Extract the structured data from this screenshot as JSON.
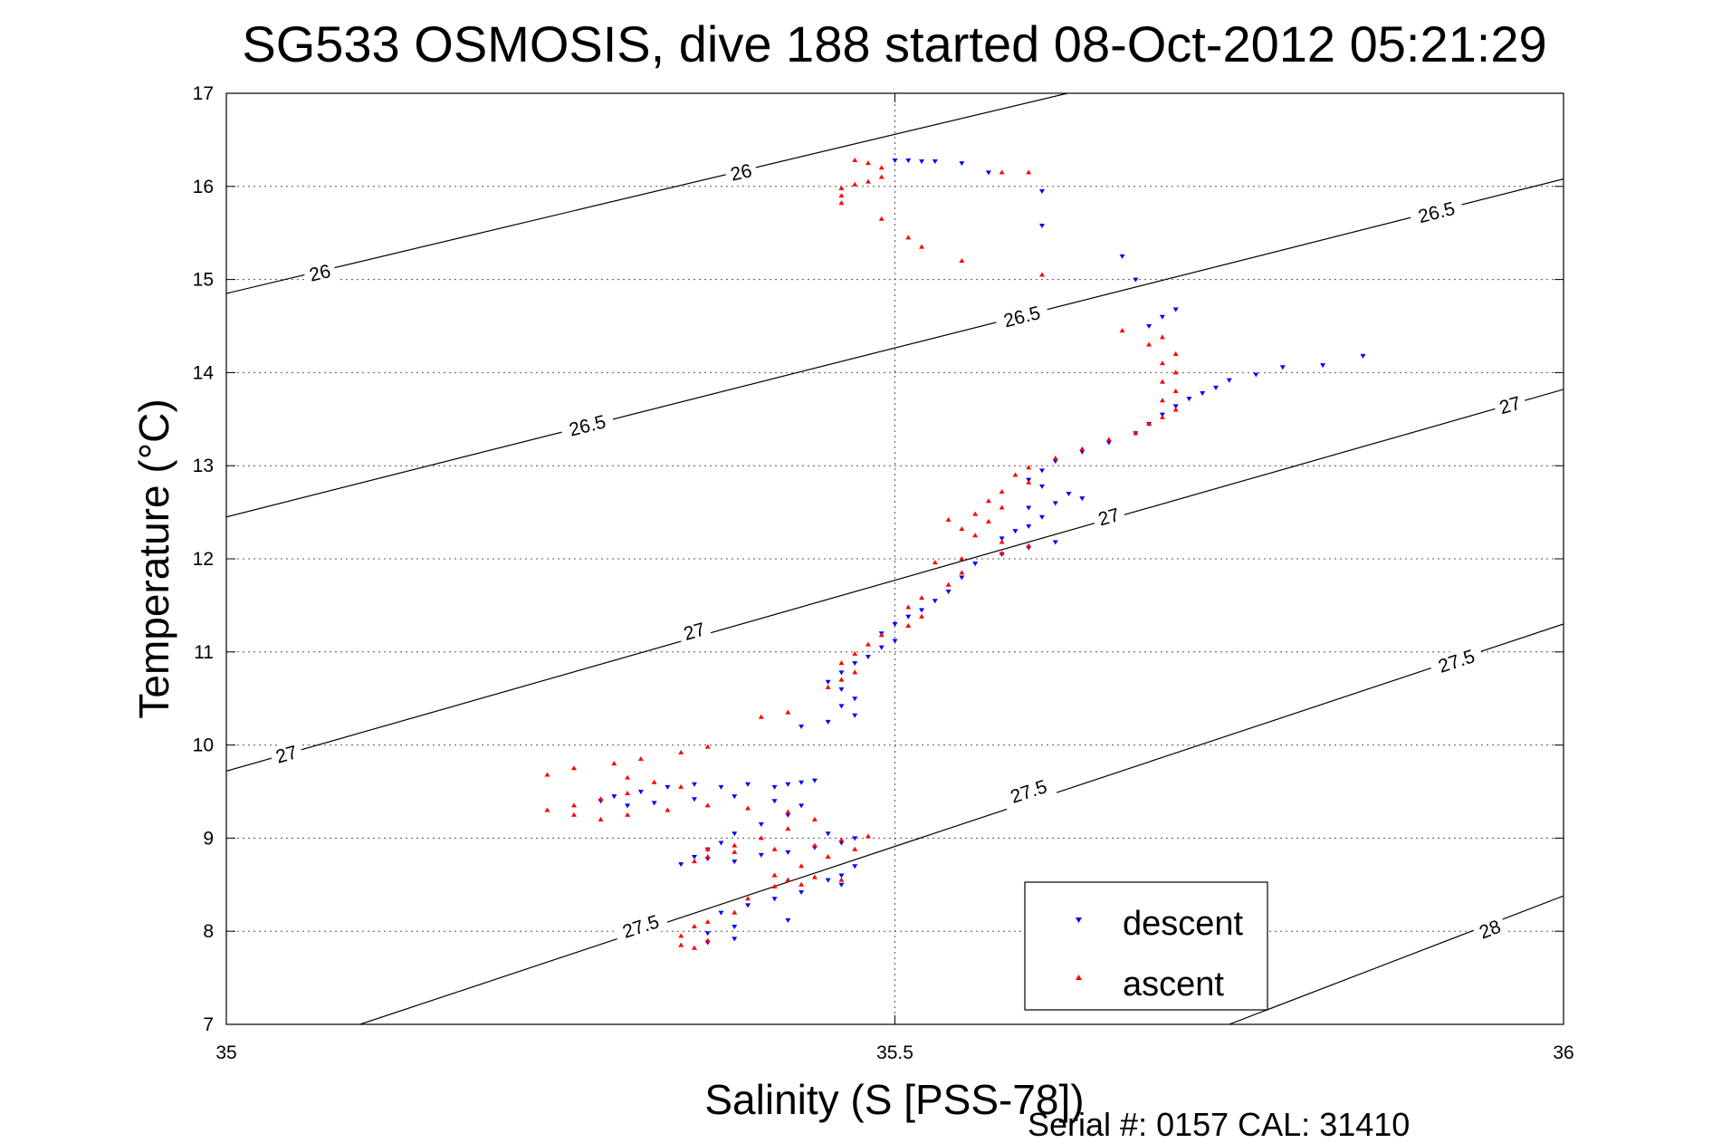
{
  "chart_data": {
    "type": "scatter",
    "title": "SG533 OSMOSIS, dive 188 started 08-Oct-2012 05:21:29",
    "xlabel": "Salinity (S [PSS-78])",
    "ylabel": "Temperature (°C)",
    "footer": "Serial #: 0157  CAL: 31410",
    "xlim": [
      35,
      36
    ],
    "ylim": [
      7,
      17
    ],
    "xticks": [
      "35",
      "35.5",
      "36"
    ],
    "yticks": [
      "7",
      "8",
      "9",
      "10",
      "11",
      "12",
      "13",
      "14",
      "15",
      "16",
      "17"
    ],
    "grid": true,
    "legend": {
      "placement": "bottom-right",
      "entries": [
        {
          "label": "descent",
          "color": "#0000ff",
          "marker": "triangle-down"
        },
        {
          "label": "ascent",
          "color": "#ff0000",
          "marker": "triangle-up"
        }
      ]
    },
    "density_contours": [
      {
        "label": "26",
        "line": [
          [
            35,
            14.85
          ],
          [
            35.629,
            17.0
          ]
        ],
        "labels": [
          [
            35.07,
            15.07
          ],
          [
            35.385,
            16.15
          ]
        ]
      },
      {
        "label": "26.5",
        "line": [
          [
            35,
            12.45
          ],
          [
            36,
            16.08
          ]
        ],
        "labels": [
          [
            35.27,
            13.43
          ],
          [
            35.595,
            14.6
          ],
          [
            35.905,
            15.72
          ]
        ]
      },
      {
        "label": "27",
        "line": [
          [
            35,
            9.72
          ],
          [
            36,
            13.82
          ]
        ],
        "labels": [
          [
            35.045,
            9.9
          ],
          [
            35.35,
            11.22
          ],
          [
            35.66,
            12.45
          ],
          [
            35.96,
            13.65
          ]
        ]
      },
      {
        "label": "27.5",
        "line": [
          [
            35.1,
            7.0
          ],
          [
            36,
            11.3
          ]
        ],
        "labels": [
          [
            35.31,
            8.05
          ],
          [
            35.6,
            9.5
          ],
          [
            35.92,
            10.9
          ]
        ]
      },
      {
        "label": "28",
        "line": [
          [
            35.75,
            7.0
          ],
          [
            36,
            8.38
          ]
        ],
        "labels": [
          [
            35.945,
            8.02
          ]
        ]
      }
    ],
    "series": [
      {
        "name": "descent",
        "color": "#0000ff",
        "points": [
          [
            35.5,
            16.28
          ],
          [
            35.51,
            16.28
          ],
          [
            35.52,
            16.27
          ],
          [
            35.53,
            16.27
          ],
          [
            35.55,
            16.25
          ],
          [
            35.57,
            16.15
          ],
          [
            35.61,
            15.95
          ],
          [
            35.61,
            15.58
          ],
          [
            35.67,
            15.25
          ],
          [
            35.68,
            15.0
          ],
          [
            35.71,
            14.68
          ],
          [
            35.7,
            14.6
          ],
          [
            35.69,
            14.5
          ],
          [
            35.85,
            14.18
          ],
          [
            35.82,
            14.08
          ],
          [
            35.79,
            14.06
          ],
          [
            35.77,
            13.98
          ],
          [
            35.75,
            13.92
          ],
          [
            35.74,
            13.84
          ],
          [
            35.73,
            13.78
          ],
          [
            35.72,
            13.72
          ],
          [
            35.71,
            13.64
          ],
          [
            35.7,
            13.55
          ],
          [
            35.69,
            13.45
          ],
          [
            35.68,
            13.35
          ],
          [
            35.66,
            13.25
          ],
          [
            35.64,
            13.15
          ],
          [
            35.62,
            13.05
          ],
          [
            35.61,
            12.95
          ],
          [
            35.6,
            12.85
          ],
          [
            35.61,
            12.78
          ],
          [
            35.63,
            12.7
          ],
          [
            35.64,
            12.65
          ],
          [
            35.62,
            12.6
          ],
          [
            35.6,
            12.55
          ],
          [
            35.61,
            12.45
          ],
          [
            35.6,
            12.35
          ],
          [
            35.59,
            12.3
          ],
          [
            35.58,
            12.22
          ],
          [
            35.62,
            12.18
          ],
          [
            35.6,
            12.12
          ],
          [
            35.58,
            12.05
          ],
          [
            35.56,
            11.95
          ],
          [
            35.55,
            11.8
          ],
          [
            35.54,
            11.65
          ],
          [
            35.53,
            11.55
          ],
          [
            35.52,
            11.45
          ],
          [
            35.51,
            11.38
          ],
          [
            35.5,
            11.3
          ],
          [
            35.49,
            11.2
          ],
          [
            35.5,
            11.12
          ],
          [
            35.49,
            11.05
          ],
          [
            35.48,
            10.95
          ],
          [
            35.47,
            10.88
          ],
          [
            35.46,
            10.78
          ],
          [
            35.45,
            10.68
          ],
          [
            35.46,
            10.6
          ],
          [
            35.47,
            10.5
          ],
          [
            35.46,
            10.42
          ],
          [
            35.47,
            10.32
          ],
          [
            35.45,
            10.25
          ],
          [
            35.43,
            10.2
          ],
          [
            35.44,
            9.62
          ],
          [
            35.43,
            9.6
          ],
          [
            35.42,
            9.58
          ],
          [
            35.41,
            9.55
          ],
          [
            35.39,
            9.58
          ],
          [
            35.37,
            9.55
          ],
          [
            35.35,
            9.58
          ],
          [
            35.33,
            9.55
          ],
          [
            35.31,
            9.5
          ],
          [
            35.29,
            9.45
          ],
          [
            35.28,
            9.4
          ],
          [
            35.3,
            9.35
          ],
          [
            35.32,
            9.38
          ],
          [
            35.35,
            9.42
          ],
          [
            35.38,
            9.45
          ],
          [
            35.41,
            9.4
          ],
          [
            35.43,
            9.35
          ],
          [
            35.42,
            9.25
          ],
          [
            35.4,
            9.15
          ],
          [
            35.38,
            9.05
          ],
          [
            35.37,
            8.95
          ],
          [
            35.36,
            8.88
          ],
          [
            35.35,
            8.8
          ],
          [
            35.38,
            8.75
          ],
          [
            35.34,
            8.72
          ],
          [
            35.36,
            8.78
          ],
          [
            35.4,
            8.82
          ],
          [
            35.42,
            8.85
          ],
          [
            35.44,
            8.9
          ],
          [
            35.46,
            8.95
          ],
          [
            35.47,
            9.0
          ],
          [
            35.45,
            9.05
          ],
          [
            35.47,
            8.7
          ],
          [
            35.46,
            8.6
          ],
          [
            35.45,
            8.55
          ],
          [
            35.46,
            8.5
          ],
          [
            35.43,
            8.42
          ],
          [
            35.41,
            8.35
          ],
          [
            35.39,
            8.28
          ],
          [
            35.37,
            8.2
          ],
          [
            35.42,
            8.12
          ],
          [
            35.38,
            8.05
          ],
          [
            35.36,
            7.98
          ],
          [
            35.38,
            7.92
          ],
          [
            35.36,
            7.88
          ]
        ]
      },
      {
        "name": "ascent",
        "color": "#ff0000",
        "points": [
          [
            35.47,
            16.28
          ],
          [
            35.48,
            16.25
          ],
          [
            35.49,
            16.2
          ],
          [
            35.49,
            16.1
          ],
          [
            35.48,
            16.05
          ],
          [
            35.47,
            16.02
          ],
          [
            35.46,
            15.98
          ],
          [
            35.46,
            15.9
          ],
          [
            35.46,
            15.82
          ],
          [
            35.58,
            16.15
          ],
          [
            35.6,
            16.15
          ],
          [
            35.49,
            15.65
          ],
          [
            35.51,
            15.45
          ],
          [
            35.52,
            15.35
          ],
          [
            35.55,
            15.2
          ],
          [
            35.61,
            15.05
          ],
          [
            35.67,
            14.45
          ],
          [
            35.7,
            14.38
          ],
          [
            35.69,
            14.3
          ],
          [
            35.71,
            14.2
          ],
          [
            35.7,
            14.1
          ],
          [
            35.71,
            14.0
          ],
          [
            35.7,
            13.9
          ],
          [
            35.71,
            13.8
          ],
          [
            35.7,
            13.7
          ],
          [
            35.71,
            13.6
          ],
          [
            35.7,
            13.52
          ],
          [
            35.69,
            13.45
          ],
          [
            35.68,
            13.35
          ],
          [
            35.66,
            13.28
          ],
          [
            35.64,
            13.18
          ],
          [
            35.62,
            13.08
          ],
          [
            35.6,
            12.98
          ],
          [
            35.59,
            12.9
          ],
          [
            35.6,
            12.82
          ],
          [
            35.58,
            12.72
          ],
          [
            35.57,
            12.62
          ],
          [
            35.58,
            12.55
          ],
          [
            35.56,
            12.48
          ],
          [
            35.54,
            12.42
          ],
          [
            35.57,
            12.4
          ],
          [
            35.55,
            12.32
          ],
          [
            35.56,
            12.25
          ],
          [
            35.58,
            12.18
          ],
          [
            35.6,
            12.14
          ],
          [
            35.58,
            12.06
          ],
          [
            35.55,
            12.0
          ],
          [
            35.53,
            11.96
          ],
          [
            35.55,
            11.85
          ],
          [
            35.54,
            11.72
          ],
          [
            35.52,
            11.58
          ],
          [
            35.51,
            11.48
          ],
          [
            35.52,
            11.38
          ],
          [
            35.51,
            11.28
          ],
          [
            35.49,
            11.18
          ],
          [
            35.48,
            11.08
          ],
          [
            35.47,
            10.98
          ],
          [
            35.46,
            10.88
          ],
          [
            35.47,
            10.78
          ],
          [
            35.46,
            10.7
          ],
          [
            35.45,
            10.62
          ],
          [
            35.42,
            10.35
          ],
          [
            35.4,
            10.3
          ],
          [
            35.36,
            9.98
          ],
          [
            35.34,
            9.92
          ],
          [
            35.31,
            9.85
          ],
          [
            35.29,
            9.8
          ],
          [
            35.26,
            9.75
          ],
          [
            35.24,
            9.68
          ],
          [
            35.3,
            9.65
          ],
          [
            35.32,
            9.6
          ],
          [
            35.34,
            9.55
          ],
          [
            35.3,
            9.48
          ],
          [
            35.28,
            9.42
          ],
          [
            35.26,
            9.35
          ],
          [
            35.24,
            9.3
          ],
          [
            35.26,
            9.25
          ],
          [
            35.28,
            9.2
          ],
          [
            35.3,
            9.25
          ],
          [
            35.33,
            9.3
          ],
          [
            35.36,
            9.35
          ],
          [
            35.39,
            9.32
          ],
          [
            35.42,
            9.28
          ],
          [
            35.44,
            9.2
          ],
          [
            35.42,
            9.1
          ],
          [
            35.4,
            9.0
          ],
          [
            35.38,
            8.92
          ],
          [
            35.36,
            8.88
          ],
          [
            35.36,
            8.8
          ],
          [
            35.35,
            8.75
          ],
          [
            35.38,
            8.85
          ],
          [
            35.41,
            8.88
          ],
          [
            35.44,
            8.92
          ],
          [
            35.46,
            8.98
          ],
          [
            35.48,
            9.02
          ],
          [
            35.47,
            8.88
          ],
          [
            35.45,
            8.8
          ],
          [
            35.43,
            8.7
          ],
          [
            35.41,
            8.6
          ],
          [
            35.42,
            8.55
          ],
          [
            35.44,
            8.58
          ],
          [
            35.46,
            8.55
          ],
          [
            35.43,
            8.5
          ],
          [
            35.41,
            8.48
          ],
          [
            35.39,
            8.35
          ],
          [
            35.38,
            8.2
          ],
          [
            35.36,
            8.1
          ],
          [
            35.35,
            8.05
          ],
          [
            35.34,
            7.95
          ],
          [
            35.34,
            7.85
          ],
          [
            35.35,
            7.82
          ],
          [
            35.36,
            7.9
          ]
        ]
      }
    ]
  }
}
